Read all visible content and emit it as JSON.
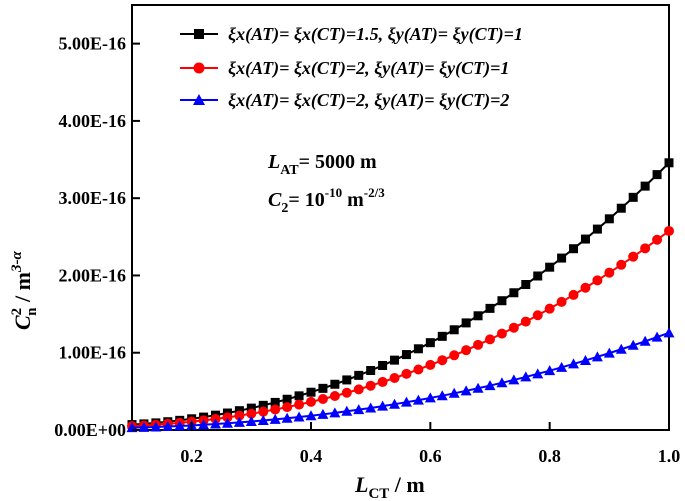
{
  "chart_data": {
    "type": "line",
    "title": "",
    "xlabel": {
      "main": "L",
      "sub": "CT",
      "unit": " / m"
    },
    "ylabel": {
      "main": "C",
      "sup": "2",
      "sub": "n",
      "unit": " / m",
      "unit_sup": "3-α"
    },
    "xlim": [
      0.1,
      1.0
    ],
    "ylim": [
      0.0,
      5.5e-16
    ],
    "xticks": [
      0.2,
      0.4,
      0.6,
      0.8,
      1.0
    ],
    "xtick_labels": [
      "0.2",
      "0.4",
      "0.6",
      "0.8",
      "1.0"
    ],
    "yticks": [
      0.0,
      1e-16,
      2e-16,
      3e-16,
      4e-16,
      5e-16
    ],
    "ytick_labels": [
      "0.00E+00",
      "1.00E-16",
      "2.00E-16",
      "3.00E-16",
      "4.00E-16",
      "5.00E-16"
    ],
    "x": [
      0.1,
      0.12,
      0.14,
      0.16,
      0.18,
      0.2,
      0.22,
      0.24,
      0.26,
      0.28,
      0.3,
      0.32,
      0.34,
      0.36,
      0.38,
      0.4,
      0.42,
      0.44,
      0.46,
      0.48,
      0.5,
      0.52,
      0.54,
      0.56,
      0.58,
      0.6,
      0.62,
      0.64,
      0.66,
      0.68,
      0.7,
      0.72,
      0.74,
      0.76,
      0.78,
      0.8,
      0.82,
      0.84,
      0.86,
      0.88,
      0.9,
      0.92,
      0.94,
      0.96,
      0.98,
      1.0
    ],
    "series": [
      {
        "name": "ξx(AT)= ξx(CT)=1.5, ξy(AT)= ξy(CT)=1",
        "color": "#000000",
        "marker": "square",
        "values": [
          0.07,
          0.079,
          0.092,
          0.107,
          0.125,
          0.145,
          0.167,
          0.192,
          0.22,
          0.25,
          0.283,
          0.319,
          0.357,
          0.398,
          0.442,
          0.489,
          0.539,
          0.592,
          0.648,
          0.707,
          0.77,
          0.835,
          0.904,
          0.976,
          1.051,
          1.13,
          1.212,
          1.297,
          1.386,
          1.478,
          1.574,
          1.673,
          1.776,
          1.883,
          1.993,
          2.107,
          2.225,
          2.346,
          2.471,
          2.6,
          2.733,
          2.87,
          3.011,
          3.156,
          3.305,
          3.458
        ]
      },
      {
        "name": "ξx(AT)= ξx(CT)=2, ξy(AT)= ξy(CT)=1",
        "color": "#ff0000",
        "marker": "circle",
        "values": [
          0.05,
          0.058,
          0.068,
          0.08,
          0.093,
          0.108,
          0.125,
          0.143,
          0.164,
          0.186,
          0.211,
          0.237,
          0.266,
          0.296,
          0.329,
          0.364,
          0.401,
          0.44,
          0.482,
          0.526,
          0.573,
          0.622,
          0.673,
          0.727,
          0.783,
          0.842,
          0.903,
          0.967,
          1.033,
          1.102,
          1.173,
          1.247,
          1.324,
          1.403,
          1.485,
          1.57,
          1.658,
          1.748,
          1.841,
          1.937,
          2.036,
          2.138,
          2.243,
          2.351,
          2.462,
          2.576
        ]
      },
      {
        "name": "ξx(AT)= ξx(CT)=2, ξy(AT)= ξy(CT)=2",
        "color": "#0000ff",
        "marker": "triangle",
        "values": [
          0.03,
          0.034,
          0.039,
          0.045,
          0.052,
          0.059,
          0.068,
          0.077,
          0.087,
          0.098,
          0.11,
          0.123,
          0.137,
          0.152,
          0.168,
          0.185,
          0.203,
          0.222,
          0.242,
          0.263,
          0.285,
          0.309,
          0.334,
          0.36,
          0.387,
          0.415,
          0.444,
          0.475,
          0.507,
          0.54,
          0.575,
          0.611,
          0.648,
          0.687,
          0.727,
          0.768,
          0.811,
          0.855,
          0.9,
          0.947,
          0.995,
          1.045,
          1.096,
          1.148,
          1.202,
          1.257
        ]
      }
    ],
    "value_scale": "1e-16",
    "legend_position": "top",
    "annotations": [
      {
        "main": "L",
        "sub": "AT",
        "text": "= 5000 m"
      },
      {
        "main": "C",
        "sub": "2",
        "text": "= 10",
        "sup": "-10",
        "text2": " m",
        "sup2": "-2/3"
      }
    ]
  }
}
